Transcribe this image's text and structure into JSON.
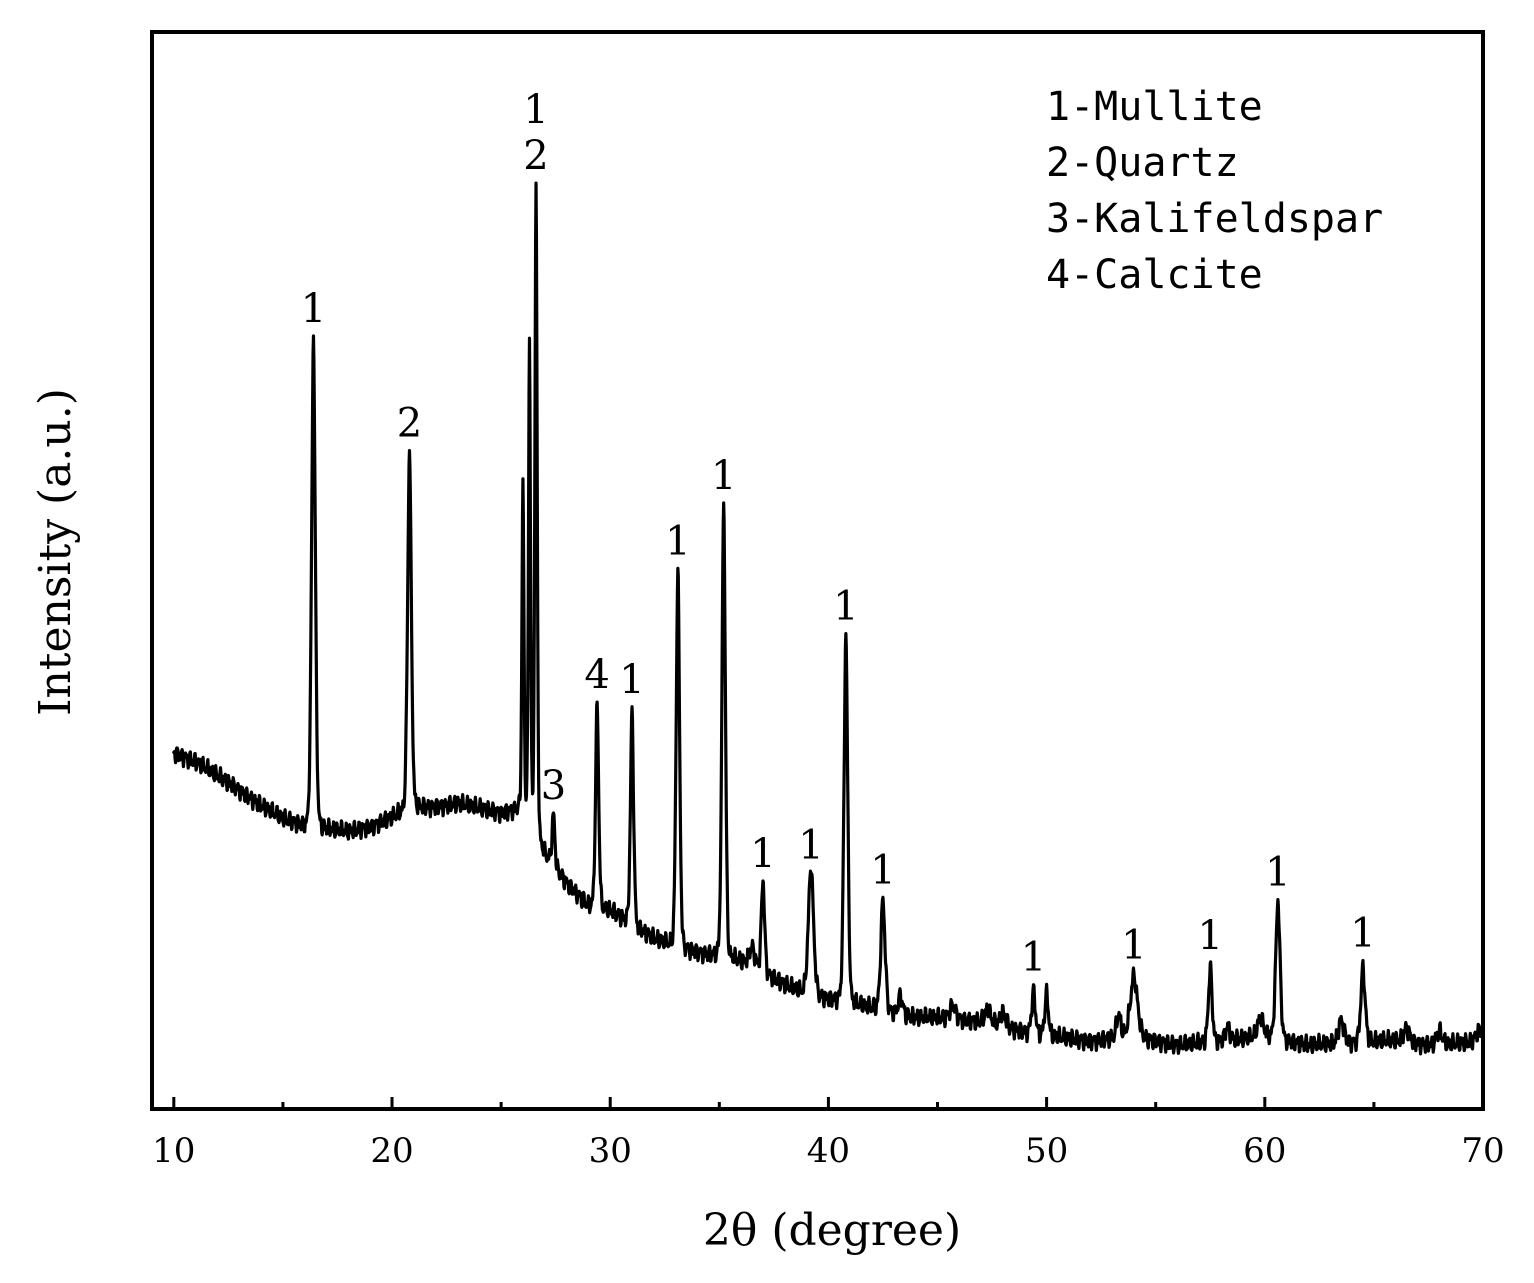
{
  "chart_data": {
    "type": "line",
    "xlabel": "2θ (degree)",
    "ylabel": "Intensity (a.u.)",
    "xlim": [
      9,
      70
    ],
    "ylim": [
      0,
      100
    ],
    "x_ticks": [
      10,
      20,
      30,
      40,
      50,
      60,
      70
    ],
    "x_tick_labels": [
      "10",
      "20",
      "30",
      "40",
      "50",
      "60",
      "70"
    ],
    "y_ticks_shown": false,
    "grid": false,
    "legend_placement": "top-right",
    "legend": [
      {
        "key": "1",
        "text": "1-Mullite"
      },
      {
        "key": "2",
        "text": "2-Quartz"
      },
      {
        "key": "3",
        "text": "3-Kalifeldspar"
      },
      {
        "key": "4",
        "text": "4-Calcite"
      }
    ],
    "line_color": "#000000",
    "baseline": [
      [
        10,
        35
      ],
      [
        11,
        34
      ],
      [
        12,
        32.5
      ],
      [
        13,
        31
      ],
      [
        14,
        29.3
      ],
      [
        15,
        27.9
      ],
      [
        16,
        27
      ],
      [
        17,
        26.7
      ],
      [
        18,
        26.5
      ],
      [
        19,
        27
      ],
      [
        20,
        28
      ],
      [
        21,
        29
      ],
      [
        22,
        29.2
      ],
      [
        23,
        29.5
      ],
      [
        24,
        29
      ],
      [
        25,
        28.5
      ],
      [
        26,
        29
      ],
      [
        27,
        24
      ],
      [
        28,
        21
      ],
      [
        29,
        18.5
      ],
      [
        30,
        18
      ],
      [
        31,
        16.5
      ],
      [
        32,
        15
      ],
      [
        33,
        14
      ],
      [
        34,
        13.5
      ],
      [
        35,
        13
      ],
      [
        36,
        12.5
      ],
      [
        37,
        11.5
      ],
      [
        38,
        10
      ],
      [
        39,
        9
      ],
      [
        40,
        8.5
      ],
      [
        41,
        8
      ],
      [
        42,
        7.5
      ],
      [
        43,
        7
      ],
      [
        44,
        6.5
      ],
      [
        45,
        6.5
      ],
      [
        46,
        6.3
      ],
      [
        47,
        6
      ],
      [
        48,
        5.5
      ],
      [
        49,
        5
      ],
      [
        50,
        4.5
      ],
      [
        52,
        4
      ],
      [
        54,
        4.5
      ],
      [
        56,
        3.5
      ],
      [
        58,
        4
      ],
      [
        60,
        4.5
      ],
      [
        62,
        3.5
      ],
      [
        64,
        3.8
      ],
      [
        66,
        4
      ],
      [
        68,
        3.5
      ],
      [
        70,
        4
      ]
    ],
    "peaks": [
      {
        "x": 16.4,
        "height": 53,
        "w": 0.13,
        "label": "1"
      },
      {
        "x": 20.8,
        "height": 39,
        "w": 0.13,
        "label": "2"
      },
      {
        "x": 26.0,
        "height": 35,
        "w": 0.07
      },
      {
        "x": 26.3,
        "height": 52,
        "w": 0.07
      },
      {
        "x": 26.6,
        "height": 70,
        "w": 0.08,
        "label": "1\n2"
      },
      {
        "x": 27.4,
        "height": 5.5,
        "w": 0.1,
        "label": "3"
      },
      {
        "x": 29.4,
        "height": 22,
        "w": 0.11,
        "label": "4"
      },
      {
        "x": 31.0,
        "height": 23,
        "w": 0.11,
        "label": "1"
      },
      {
        "x": 33.1,
        "height": 41,
        "w": 0.12,
        "label": "1"
      },
      {
        "x": 35.2,
        "height": 49.5,
        "w": 0.12,
        "label": "1"
      },
      {
        "x": 36.5,
        "height": 2,
        "w": 0.2
      },
      {
        "x": 37.0,
        "height": 10,
        "w": 0.11,
        "label": "1"
      },
      {
        "x": 39.2,
        "height": 14,
        "w": 0.18,
        "label": "1"
      },
      {
        "x": 40.8,
        "height": 40,
        "w": 0.13,
        "label": "1"
      },
      {
        "x": 42.5,
        "height": 12,
        "w": 0.15,
        "label": "1"
      },
      {
        "x": 43.3,
        "height": 2,
        "w": 0.15
      },
      {
        "x": 45.7,
        "height": 1.5,
        "w": 0.2
      },
      {
        "x": 47.3,
        "height": 1.5,
        "w": 0.2
      },
      {
        "x": 48.0,
        "height": 1.5,
        "w": 0.2
      },
      {
        "x": 49.4,
        "height": 4.5,
        "w": 0.13,
        "label": "1"
      },
      {
        "x": 50.0,
        "height": 4.5,
        "w": 0.13
      },
      {
        "x": 53.3,
        "height": 2.5,
        "w": 0.15
      },
      {
        "x": 54.0,
        "height": 6.5,
        "w": 0.25,
        "label": "1"
      },
      {
        "x": 57.5,
        "height": 8,
        "w": 0.13,
        "label": "1"
      },
      {
        "x": 58.3,
        "height": 1.5,
        "w": 0.15
      },
      {
        "x": 59.8,
        "height": 2,
        "w": 0.2
      },
      {
        "x": 60.6,
        "height": 15,
        "w": 0.15,
        "label": "1"
      },
      {
        "x": 63.5,
        "height": 2.5,
        "w": 0.2
      },
      {
        "x": 64.5,
        "height": 8,
        "w": 0.15,
        "label": "1"
      },
      {
        "x": 66.5,
        "height": 1.5,
        "w": 0.2
      },
      {
        "x": 68.0,
        "height": 1.5,
        "w": 0.2
      },
      {
        "x": 69.8,
        "height": 1.2,
        "w": 0.2
      }
    ]
  }
}
